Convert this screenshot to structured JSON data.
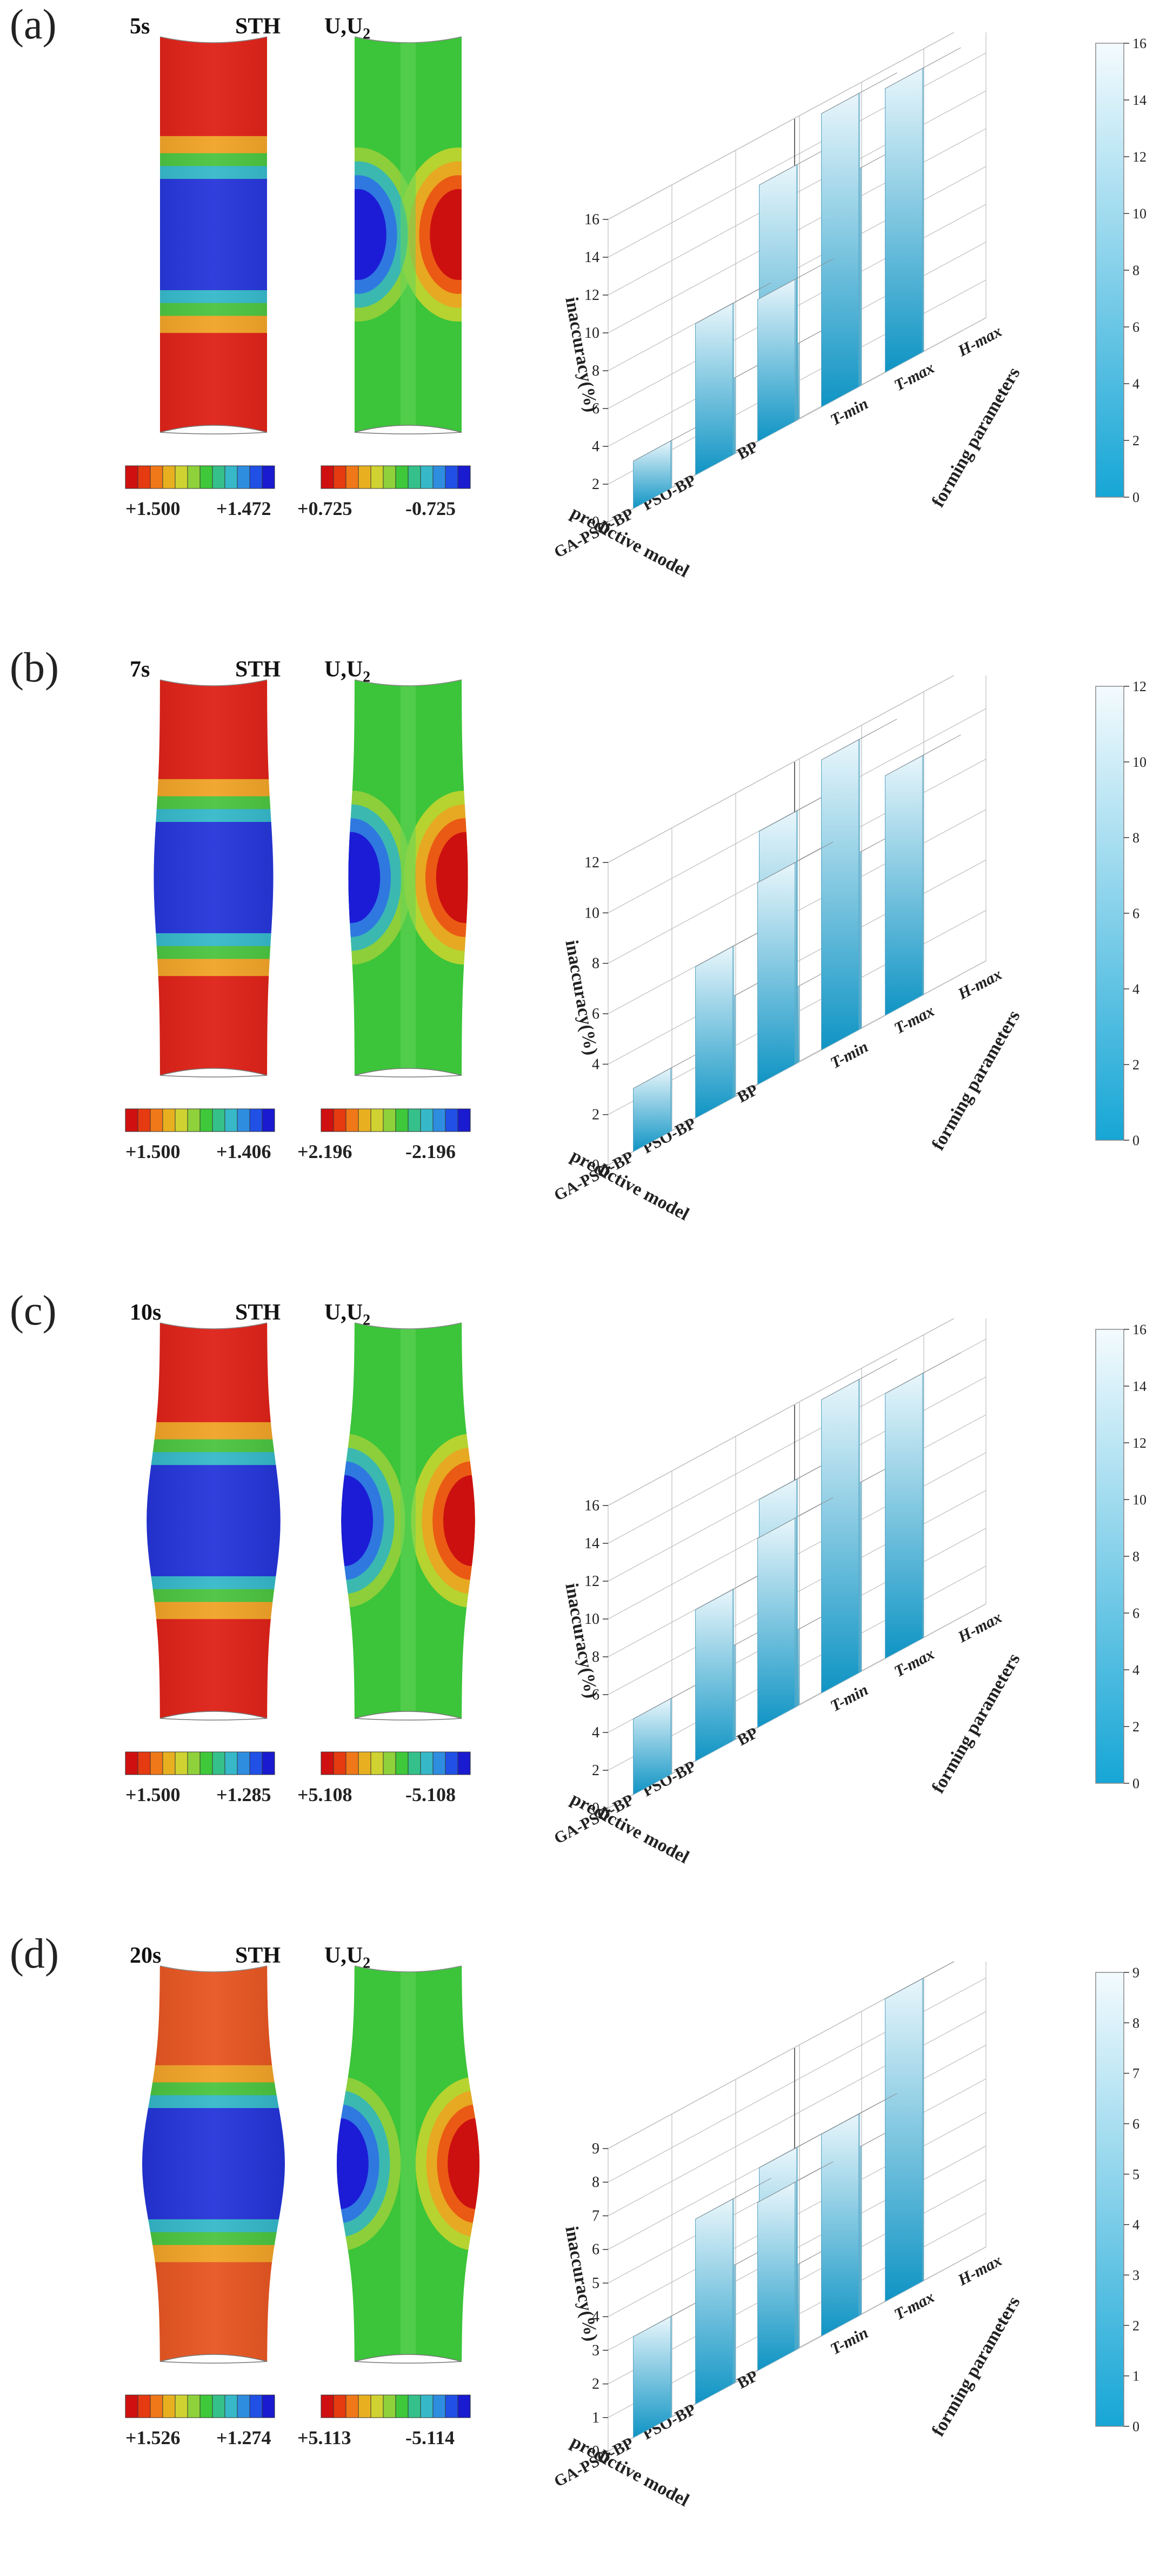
{
  "colors": {
    "contour": [
      "#d01010",
      "#e63a10",
      "#f07818",
      "#e8b020",
      "#cfd230",
      "#8fd13a",
      "#3ec83a",
      "#35c08a",
      "#36b8c8",
      "#2f8de0",
      "#2050e6",
      "#1a1ad0"
    ],
    "bar_light": "#f4fbfe",
    "bar_dark": "#16a6d6",
    "bar_top": "#b8bcc0",
    "grid": "#bdbdbd"
  },
  "panels": [
    {
      "label": "(a)",
      "time": "5s",
      "var1": "STH",
      "var2_main": "U,U",
      "var2_sub": "2",
      "legend1_left": "+1.500",
      "legend1_right": "+1.472",
      "legend2_left": "+0.725",
      "legend2_right": "-0.725",
      "bulge": 0.0,
      "chart_data": {
        "type": "bar3d",
        "x_categories": [
          "BP",
          "PSO-BP",
          "GA-PSO-BP"
        ],
        "y_categories": [
          "T-min",
          "T-max",
          "H-max"
        ],
        "xlabel": "predictive model",
        "ylabel": "forming parameters",
        "zlabel": "inaccuracy(%)",
        "zlim": [
          0,
          16
        ],
        "zticks": [
          0,
          2,
          4,
          6,
          8,
          10,
          12,
          14,
          16
        ],
        "colorbar_ticks": [
          0,
          2,
          4,
          6,
          8,
          10,
          12,
          14,
          16
        ],
        "values": [
          [
            7.5,
            15.5,
            15.0
          ],
          [
            8.0,
            13.5,
            11.5
          ],
          [
            2.5,
            4.0,
            4.0
          ]
        ]
      }
    },
    {
      "label": "(b)",
      "time": "7s",
      "var1": "STH",
      "var2_main": "U,U",
      "var2_sub": "2",
      "legend1_left": "+1.500",
      "legend1_right": "+1.406",
      "legend2_left": "+2.196",
      "legend2_right": "-2.196",
      "bulge": 0.35,
      "chart_data": {
        "type": "bar3d",
        "x_categories": [
          "BP",
          "PSO-BP",
          "GA-PSO-BP"
        ],
        "y_categories": [
          "T-min",
          "T-max",
          "H-max"
        ],
        "xlabel": "predictive model",
        "ylabel": "forming parameters",
        "zlabel": "inaccuracy(%)",
        "zlim": [
          0,
          12
        ],
        "zticks": [
          0,
          2,
          4,
          6,
          8,
          10,
          12
        ],
        "colorbar_ticks": [
          0,
          2,
          4,
          6,
          8,
          10,
          12
        ],
        "values": [
          [
            8.0,
            11.5,
            9.5
          ],
          [
            6.0,
            10.0,
            7.0
          ],
          [
            2.5,
            4.0,
            3.0
          ]
        ]
      }
    },
    {
      "label": "(c)",
      "time": "10s",
      "var1": "STH",
      "var2_main": "U,U",
      "var2_sub": "2",
      "legend1_left": "+1.500",
      "legend1_right": "+1.285",
      "legend2_left": "+5.108",
      "legend2_right": "-5.108",
      "bulge": 0.75,
      "chart_data": {
        "type": "bar3d",
        "x_categories": [
          "BP",
          "PSO-BP",
          "GA-PSO-BP"
        ],
        "y_categories": [
          "T-min",
          "T-max",
          "H-max"
        ],
        "xlabel": "predictive model",
        "ylabel": "forming parameters",
        "zlabel": "inaccuracy(%)",
        "zlim": [
          0,
          16
        ],
        "zticks": [
          0,
          2,
          4,
          6,
          8,
          10,
          12,
          14,
          16
        ],
        "colorbar_ticks": [
          0,
          2,
          4,
          6,
          8,
          10,
          12,
          14,
          16
        ],
        "values": [
          [
            10.0,
            15.5,
            14.0
          ],
          [
            8.0,
            12.0,
            10.0
          ],
          [
            4.0,
            5.0,
            4.0
          ]
        ]
      }
    },
    {
      "label": "(d)",
      "time": "20s",
      "var1": "STH",
      "var2_main": "U,U",
      "var2_sub": "2",
      "legend1_left": "+1.526",
      "legend1_right": "+1.274",
      "legend2_left": "+5.113",
      "legend2_right": "-5.114",
      "bulge": 1.0,
      "chart_data": {
        "type": "bar3d",
        "x_categories": [
          "BP",
          "PSO-BP",
          "GA-PSO-BP"
        ],
        "y_categories": [
          "T-min",
          "T-max",
          "H-max"
        ],
        "xlabel": "predictive model",
        "ylabel": "forming parameters",
        "zlabel": "inaccuracy(%)",
        "zlim": [
          0,
          9
        ],
        "zticks": [
          0,
          1,
          2,
          3,
          4,
          5,
          6,
          7,
          8,
          9
        ],
        "colorbar_ticks": [
          0,
          1,
          2,
          3,
          4,
          5,
          6,
          7,
          8,
          9
        ],
        "values": [
          [
            5.0,
            6.0,
            9.0
          ],
          [
            5.5,
            6.0,
            5.0
          ],
          [
            3.0,
            3.5,
            2.5
          ]
        ]
      }
    }
  ]
}
